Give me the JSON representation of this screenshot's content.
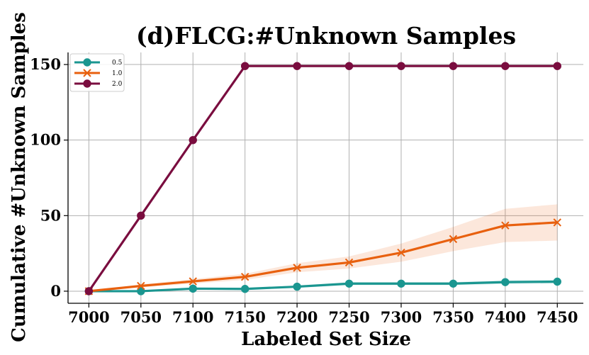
{
  "chart_data": {
    "type": "line",
    "title": "(d)FLCG:#Unknown Samples",
    "xlabel": "Labeled Set Size",
    "ylabel": "Cumulative #Unknown Samples",
    "x": [
      7000,
      7050,
      7100,
      7150,
      7200,
      7250,
      7300,
      7350,
      7400,
      7450
    ],
    "xticks": [
      "7000",
      "7050",
      "7100",
      "7150",
      "7200",
      "7250",
      "7300",
      "7350",
      "7400",
      "7450"
    ],
    "yticks": [
      "0",
      "50",
      "100",
      "150"
    ],
    "xlim": [
      6980,
      7475
    ],
    "ylim": [
      -8,
      158
    ],
    "grid": true,
    "legend_position": "top-left",
    "series": [
      {
        "name": "0.5",
        "color": "#1a9690",
        "marker": "circle",
        "values": [
          0,
          0,
          1.7,
          1.5,
          3,
          5,
          5,
          5,
          6,
          6.3
        ],
        "band_lower": [
          0,
          0,
          1.2,
          1.0,
          2.2,
          4.0,
          4.0,
          4.0,
          4.8,
          5.0
        ],
        "band_upper": [
          0,
          0,
          2.2,
          2.0,
          3.8,
          6.0,
          6.0,
          6.0,
          7.2,
          7.6
        ]
      },
      {
        "name": "1.0",
        "color": "#e8600e",
        "marker": "x",
        "values": [
          0,
          3.5,
          6.5,
          9.5,
          15.5,
          19,
          25.5,
          34.5,
          43.5,
          45.5
        ],
        "band_lower": [
          0,
          2.5,
          5,
          7.5,
          12.5,
          15,
          19.5,
          26.5,
          32.5,
          33.5
        ],
        "band_upper": [
          0,
          4.5,
          8,
          11.5,
          18.5,
          23,
          31.5,
          42.5,
          54.5,
          57.5
        ]
      },
      {
        "name": "2.0",
        "color": "#7a0d3f",
        "marker": "circle",
        "values": [
          0,
          50,
          100,
          149,
          149,
          149,
          149,
          149,
          149,
          149
        ]
      }
    ]
  }
}
